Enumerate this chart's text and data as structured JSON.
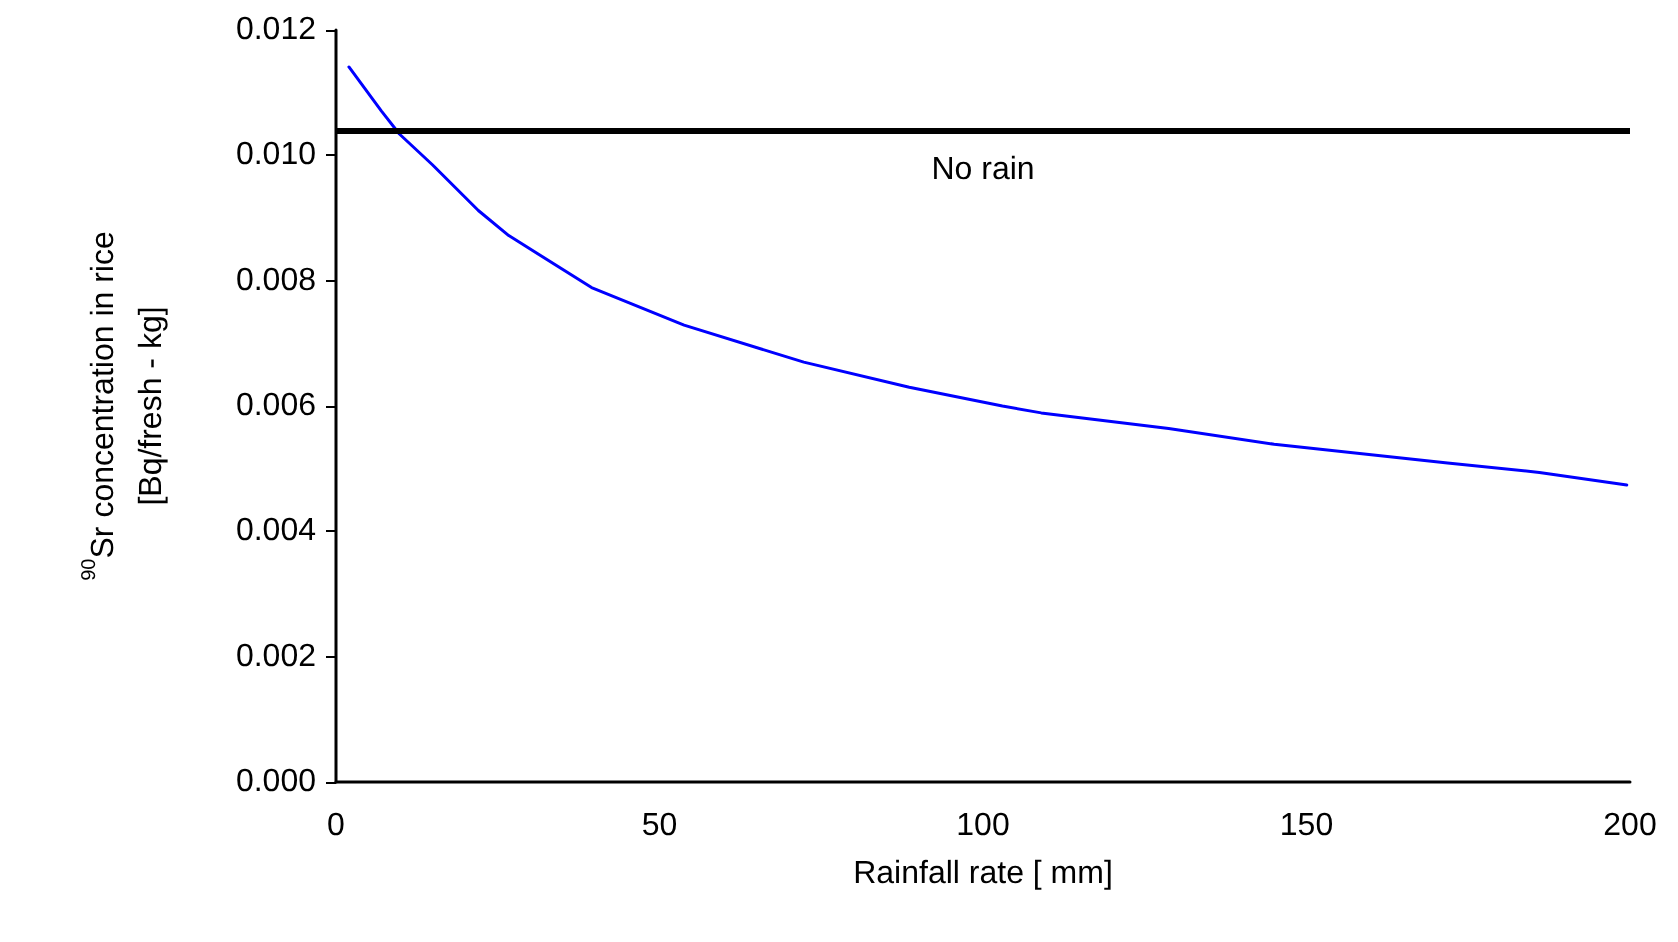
{
  "chart_data": {
    "type": "line",
    "xlabel": "Rainfall rate [ mm]",
    "ylabel": "$^{90}$Sr concentration in rice\n[Bq/fresh - kg]",
    "x": [
      2,
      7,
      9.8,
      14.9,
      22,
      26.7,
      39.5,
      53.8,
      72.3,
      88.6,
      103,
      109,
      128.7,
      145,
      171.8,
      186,
      199.5
    ],
    "series": [
      {
        "color": "#0000ff",
        "values": [
          0.01141,
          0.01071,
          0.01034,
          0.00985,
          0.00912,
          0.00872,
          0.00789,
          0.00729,
          0.0067,
          0.0063,
          0.006,
          0.00589,
          0.00564,
          0.00539,
          0.00509,
          0.00494,
          0.00474
        ]
      }
    ],
    "xlim": [
      0,
      200
    ],
    "xticks": [
      0,
      50,
      100,
      150,
      200
    ],
    "ylim": [
      0,
      0.012
    ],
    "yticks": [
      {
        "value": 0,
        "label": "0.000"
      },
      {
        "value": 0.002,
        "label": "0.002"
      },
      {
        "value": 0.004,
        "label": "0.004"
      },
      {
        "value": 0.006,
        "label": "0.006"
      },
      {
        "value": 0.008,
        "label": "0.008"
      },
      {
        "value": 0.01,
        "label": "0.010"
      },
      {
        "value": 0.012,
        "label": "0.012"
      }
    ],
    "ref_lines": [
      {
        "axis": "y",
        "value": 0.0104,
        "label": "No rain",
        "color": "#000000",
        "line_style": "solid"
      }
    ],
    "grid": false,
    "marker": "none",
    "line_style": "solid"
  }
}
